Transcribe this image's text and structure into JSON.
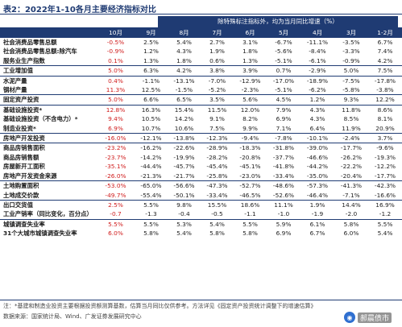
{
  "title": "表2：2022年1-10各月主要经济指标对比",
  "super_header": "除特殊标注指标外，均为当月同比增速（%）",
  "columns": [
    "",
    "10月",
    "9月",
    "8月",
    "7月",
    "6月",
    "5月",
    "4月",
    "3月",
    "1-2月"
  ],
  "rows": [
    {
      "label": "社会消费品零售总额",
      "values": [
        "-0.5%",
        "2.5%",
        "5.4%",
        "2.7%",
        "3.1%",
        "-6.7%",
        "-11.1%",
        "-3.5%",
        "6.7%"
      ]
    },
    {
      "label": "社会消费品零售总额:除汽车",
      "values": [
        "-0.9%",
        "1.2%",
        "4.3%",
        "1.9%",
        "1.8%",
        "-5.6%",
        "-8.4%",
        "-3.3%",
        "7.4%"
      ]
    },
    {
      "label": "服务业生产指数",
      "values": [
        "0.1%",
        "1.3%",
        "1.8%",
        "0.6%",
        "1.3%",
        "-5.1%",
        "-6.1%",
        "-0.9%",
        "4.2%"
      ]
    },
    {
      "label": "工业增加值",
      "values": [
        "5.0%",
        "6.3%",
        "4.2%",
        "3.8%",
        "3.9%",
        "0.7%",
        "-2.9%",
        "5.0%",
        "7.5%"
      ]
    },
    {
      "label": "水泥产量",
      "values": [
        "0.4%",
        "-1.1%",
        "-13.1%",
        "-7.0%",
        "-12.9%",
        "-17.0%",
        "-18.9%",
        "-7.5%",
        "-17.8%"
      ]
    },
    {
      "label": "钢材产量",
      "values": [
        "11.3%",
        "12.5%",
        "-1.5%",
        "-5.2%",
        "-2.3%",
        "-5.1%",
        "-6.2%",
        "-5.8%",
        "-3.8%"
      ]
    },
    {
      "label": "固定资产投资",
      "values": [
        "5.0%",
        "6.6%",
        "6.5%",
        "3.5%",
        "5.6%",
        "4.5%",
        "1.2%",
        "9.3%",
        "12.2%"
      ]
    },
    {
      "label": "基础设施投资*",
      "values": [
        "12.8%",
        "16.3%",
        "15.4%",
        "11.5%",
        "12.0%",
        "7.9%",
        "4.3%",
        "11.8%",
        "8.6%"
      ]
    },
    {
      "label": "基础设施投资（不含电力）*",
      "values": [
        "9.4%",
        "10.5%",
        "14.2%",
        "9.1%",
        "8.2%",
        "6.9%",
        "4.3%",
        "8.5%",
        "8.1%"
      ]
    },
    {
      "label": "制造业投资*",
      "values": [
        "6.9%",
        "10.7%",
        "10.6%",
        "7.5%",
        "9.9%",
        "7.1%",
        "6.4%",
        "11.9%",
        "20.9%"
      ]
    },
    {
      "label": "房地产开发投资",
      "values": [
        "-16.0%",
        "-12.1%",
        "-13.8%",
        "-12.3%",
        "-9.4%",
        "-7.8%",
        "-10.1%",
        "-2.4%",
        "3.7%"
      ]
    },
    {
      "label": "商品房销售面积",
      "values": [
        "-23.2%",
        "-16.2%",
        "-22.6%",
        "-28.9%",
        "-18.3%",
        "-31.8%",
        "-39.0%",
        "-17.7%",
        "-9.6%"
      ]
    },
    {
      "label": "商品房销售额",
      "values": [
        "-23.7%",
        "-14.2%",
        "-19.9%",
        "-28.2%",
        "-20.8%",
        "-37.7%",
        "-46.6%",
        "-26.2%",
        "-19.3%"
      ]
    },
    {
      "label": "房屋新开工面积",
      "values": [
        "-35.1%",
        "-44.4%",
        "-45.7%",
        "-45.4%",
        "-45.1%",
        "-41.8%",
        "-44.2%",
        "-22.2%",
        "-12.2%"
      ]
    },
    {
      "label": "房地产开发资金来源",
      "values": [
        "-26.0%",
        "-21.3%",
        "-21.7%",
        "-25.8%",
        "-23.0%",
        "-33.4%",
        "-35.0%",
        "-20.4%",
        "-17.7%"
      ]
    },
    {
      "label": "土地购置面积",
      "values": [
        "-53.0%",
        "-65.0%",
        "-56.6%",
        "-47.3%",
        "-52.7%",
        "-48.6%",
        "-57.3%",
        "-41.3%",
        "-42.3%"
      ]
    },
    {
      "label": "土地成交价款",
      "values": [
        "-49.7%",
        "-55.4%",
        "-50.1%",
        "-33.4%",
        "-46.5%",
        "-52.6%",
        "-46.4%",
        "-7.1%",
        "-16.6%"
      ]
    },
    {
      "label": "出口交货值",
      "values": [
        "2.5%",
        "5.5%",
        "9.8%",
        "15.5%",
        "18.6%",
        "11.1%",
        "1.9%",
        "14.4%",
        "16.9%"
      ]
    },
    {
      "label": "工业产销率（同比变化，百分点）",
      "values": [
        "-0.7",
        "-1.3",
        "-0.4",
        "-0.5",
        "-1.1",
        "-1.0",
        "-1.9",
        "-2.0",
        "-1.2"
      ]
    },
    {
      "label": "城镇调查失业率",
      "values": [
        "5.5%",
        "5.5%",
        "5.3%",
        "5.4%",
        "5.5%",
        "5.9%",
        "6.1%",
        "5.8%",
        "5.5%"
      ]
    },
    {
      "label": "31个大城市城镇调查失业率",
      "values": [
        "6.0%",
        "5.8%",
        "5.4%",
        "5.8%",
        "5.8%",
        "6.9%",
        "6.7%",
        "6.0%",
        "5.4%"
      ]
    }
  ],
  "separator_before": [
    3,
    4,
    6,
    7,
    10,
    11,
    15,
    17,
    19
  ],
  "note": "注：*基建和制造业投资主要根据投资额测算基数，估算当月同比仅供参考。方法详见《固定资产投资统计调整下的增速估算》",
  "source": "数据来源：国家统计局、Wind、广发证券发展研究中心",
  "watermark": "郝晨债市",
  "colors": {
    "header": "#1f3b73",
    "highlight": "#d01c1c"
  }
}
